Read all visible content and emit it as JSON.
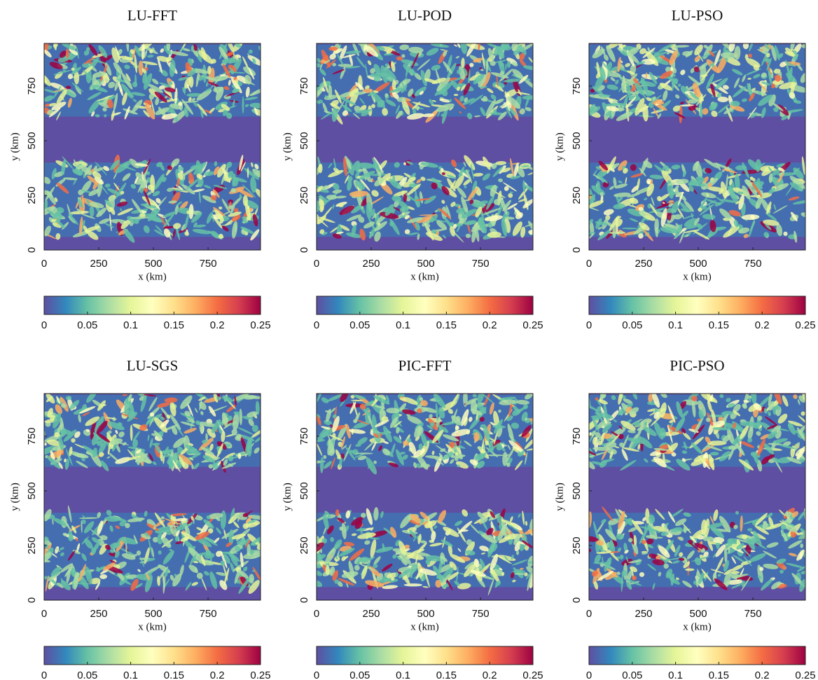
{
  "chart_data": [
    {
      "type": "heatmap",
      "title": "LU-FFT",
      "xlabel": "x (km)",
      "ylabel": "y (km)",
      "xlim": [
        0,
        990
      ],
      "ylim": [
        0,
        945
      ],
      "xticks": [
        0,
        250,
        500,
        750
      ],
      "yticks": [
        0,
        250,
        500,
        750
      ],
      "clim": [
        0,
        0.25
      ],
      "cticks": [
        0,
        0.05,
        0.1,
        0.15,
        0.2,
        0.25
      ],
      "colormap": [
        "#5e4fa2",
        "#3288bd",
        "#66c2a5",
        "#abdda4",
        "#e6f598",
        "#ffffbf",
        "#fee08b",
        "#fdae61",
        "#f46d43",
        "#d53e4f",
        "#9e0142"
      ]
    },
    {
      "type": "heatmap",
      "title": "LU-POD",
      "xlabel": "x (km)",
      "ylabel": "y (km)",
      "xlim": [
        0,
        990
      ],
      "ylim": [
        0,
        945
      ],
      "xticks": [
        0,
        250,
        500,
        750
      ],
      "yticks": [
        0,
        250,
        500,
        750
      ],
      "clim": [
        0,
        0.25
      ],
      "cticks": [
        0,
        0.05,
        0.1,
        0.15,
        0.2,
        0.25
      ],
      "colormap": [
        "#5e4fa2",
        "#3288bd",
        "#66c2a5",
        "#abdda4",
        "#e6f598",
        "#ffffbf",
        "#fee08b",
        "#fdae61",
        "#f46d43",
        "#d53e4f",
        "#9e0142"
      ]
    },
    {
      "type": "heatmap",
      "title": "LU-PSO",
      "xlabel": "x (km)",
      "ylabel": "y (km)",
      "xlim": [
        0,
        990
      ],
      "ylim": [
        0,
        945
      ],
      "xticks": [
        0,
        250,
        500,
        750
      ],
      "yticks": [
        0,
        250,
        500,
        750
      ],
      "clim": [
        0,
        0.25
      ],
      "cticks": [
        0,
        0.05,
        0.1,
        0.15,
        0.2,
        0.25
      ],
      "colormap": [
        "#5e4fa2",
        "#3288bd",
        "#66c2a5",
        "#abdda4",
        "#e6f598",
        "#ffffbf",
        "#fee08b",
        "#fdae61",
        "#f46d43",
        "#d53e4f",
        "#9e0142"
      ]
    },
    {
      "type": "heatmap",
      "title": "LU-SGS",
      "xlabel": "x (km)",
      "ylabel": "y (km)",
      "xlim": [
        0,
        990
      ],
      "ylim": [
        0,
        945
      ],
      "xticks": [
        0,
        250,
        500,
        750
      ],
      "yticks": [
        0,
        250,
        500,
        750
      ],
      "clim": [
        0,
        0.25
      ],
      "cticks": [
        0,
        0.05,
        0.1,
        0.15,
        0.2,
        0.25
      ],
      "colormap": [
        "#5e4fa2",
        "#3288bd",
        "#66c2a5",
        "#abdda4",
        "#e6f598",
        "#ffffbf",
        "#fee08b",
        "#fdae61",
        "#f46d43",
        "#d53e4f",
        "#9e0142"
      ]
    },
    {
      "type": "heatmap",
      "title": "PIC-FFT",
      "xlabel": "x (km)",
      "ylabel": "y (km)",
      "xlim": [
        0,
        990
      ],
      "ylim": [
        0,
        945
      ],
      "xticks": [
        0,
        250,
        500,
        750
      ],
      "yticks": [
        0,
        250,
        500,
        750
      ],
      "clim": [
        0,
        0.25
      ],
      "cticks": [
        0,
        0.05,
        0.1,
        0.15,
        0.2,
        0.25
      ],
      "colormap": [
        "#5e4fa2",
        "#3288bd",
        "#66c2a5",
        "#abdda4",
        "#e6f598",
        "#ffffbf",
        "#fee08b",
        "#fdae61",
        "#f46d43",
        "#d53e4f",
        "#9e0142"
      ]
    },
    {
      "type": "heatmap",
      "title": "PIC-PSO",
      "xlabel": "x (km)",
      "ylabel": "y (km)",
      "xlim": [
        0,
        990
      ],
      "ylim": [
        0,
        945
      ],
      "xticks": [
        0,
        250,
        500,
        750
      ],
      "yticks": [
        0,
        250,
        500,
        750
      ],
      "clim": [
        0,
        0.25
      ],
      "cticks": [
        0,
        0.05,
        0.1,
        0.15,
        0.2,
        0.25
      ],
      "colormap": [
        "#5e4fa2",
        "#3288bd",
        "#66c2a5",
        "#abdda4",
        "#e6f598",
        "#ffffbf",
        "#fee08b",
        "#fdae61",
        "#f46d43",
        "#d53e4f",
        "#9e0142"
      ]
    }
  ]
}
